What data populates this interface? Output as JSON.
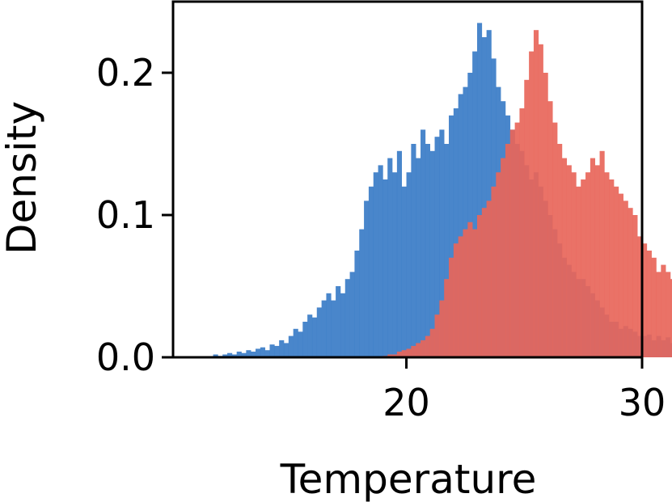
{
  "chart_data": {
    "type": "bar",
    "subtype": "overlapping-histogram",
    "title": "",
    "xlabel": "Temperature",
    "ylabel": "Density",
    "xlim": [
      10.1,
      30.0
    ],
    "ylim": [
      0.0,
      0.25
    ],
    "x_ticks": [
      20,
      30
    ],
    "x_tick_labels": [
      "20",
      "30"
    ],
    "y_ticks": [
      0.0,
      0.1,
      0.2
    ],
    "y_tick_labels": [
      "0.0",
      "0.1",
      "0.2"
    ],
    "grid": false,
    "legend": "none",
    "bin_width": 0.2,
    "series": [
      {
        "color": "#3a7cc7",
        "opacity": 0.92,
        "bin_start": 11.8,
        "values": [
          0.002,
          0.001,
          0.002,
          0.003,
          0.002,
          0.004,
          0.003,
          0.005,
          0.004,
          0.006,
          0.007,
          0.005,
          0.009,
          0.008,
          0.012,
          0.01,
          0.015,
          0.02,
          0.018,
          0.025,
          0.03,
          0.028,
          0.035,
          0.04,
          0.045,
          0.04,
          0.05,
          0.045,
          0.055,
          0.06,
          0.075,
          0.09,
          0.11,
          0.12,
          0.13,
          0.135,
          0.125,
          0.14,
          0.13,
          0.145,
          0.12,
          0.13,
          0.15,
          0.14,
          0.16,
          0.15,
          0.145,
          0.155,
          0.16,
          0.15,
          0.17,
          0.175,
          0.185,
          0.19,
          0.2,
          0.215,
          0.235,
          0.225,
          0.23,
          0.21,
          0.19,
          0.18,
          0.17,
          0.16,
          0.15,
          0.145,
          0.135,
          0.125,
          0.13,
          0.12,
          0.11,
          0.1,
          0.09,
          0.08,
          0.07,
          0.065,
          0.06,
          0.055,
          0.055,
          0.05,
          0.045,
          0.04,
          0.035,
          0.03,
          0.025,
          0.025,
          0.02,
          0.022,
          0.02,
          0.018,
          0.015,
          0.015,
          0.016,
          0.012,
          0.015,
          0.012,
          0.014,
          0.01,
          0.012,
          0.008,
          0.008,
          0.007,
          0.006,
          0.005,
          0.005,
          0.004,
          0.003,
          0.003,
          0.002,
          0.002
        ]
      },
      {
        "color": "#e8665a",
        "opacity": 0.92,
        "bin_start": 19.0,
        "values": [
          0.001,
          0.002,
          0.002,
          0.004,
          0.005,
          0.006,
          0.008,
          0.01,
          0.012,
          0.015,
          0.02,
          0.03,
          0.04,
          0.055,
          0.07,
          0.08,
          0.085,
          0.09,
          0.095,
          0.09,
          0.1,
          0.105,
          0.11,
          0.12,
          0.13,
          0.14,
          0.15,
          0.16,
          0.165,
          0.175,
          0.195,
          0.215,
          0.23,
          0.22,
          0.2,
          0.18,
          0.165,
          0.15,
          0.14,
          0.135,
          0.13,
          0.12,
          0.125,
          0.13,
          0.14,
          0.135,
          0.145,
          0.13,
          0.125,
          0.12,
          0.115,
          0.11,
          0.105,
          0.1,
          0.085,
          0.08,
          0.075,
          0.07,
          0.06,
          0.065,
          0.06,
          0.055,
          0.05,
          0.055,
          0.045,
          0.04,
          0.035,
          0.03,
          0.025,
          0.02,
          0.015,
          0.01,
          0.005,
          0.003,
          0.001
        ]
      }
    ]
  }
}
